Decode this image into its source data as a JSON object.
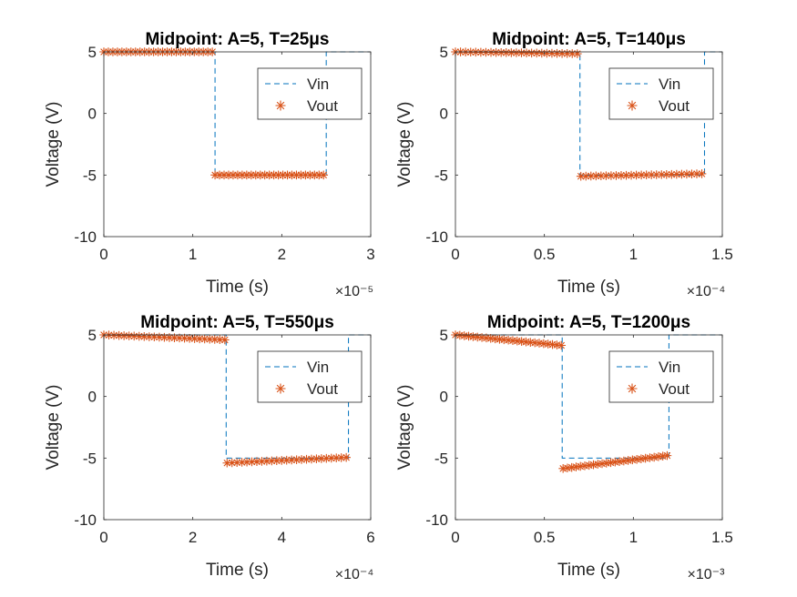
{
  "figure": {
    "colors": {
      "vin": "#0072BD",
      "vout": "#D95319",
      "axis": "#262626",
      "frame": "#262626"
    }
  },
  "chart_data": [
    {
      "type": "line",
      "title": "Midpoint: A=5, T=25μs",
      "xlabel": "Time (s)",
      "ylabel": "Voltage (V)",
      "xlim": [
        0,
        3e-05
      ],
      "ylim": [
        -10,
        5
      ],
      "x_exponent_label": "×10⁻⁵",
      "x_ticks": [
        0,
        1e-05,
        2e-05,
        3e-05
      ],
      "x_tick_labels": [
        "0",
        "1",
        "2",
        "3"
      ],
      "y_ticks": [
        -10,
        -5,
        0,
        5
      ],
      "y_tick_labels": [
        "-10",
        "-5",
        "0",
        "5"
      ],
      "grid": false,
      "legend": {
        "position": "top-right",
        "entries": [
          "Vin",
          "Vout"
        ]
      },
      "period": 2.5e-05,
      "series": [
        {
          "name": "Vin",
          "style": "dashed",
          "x": [
            0,
            1.25e-05,
            1.25e-05,
            2.5e-05,
            2.5e-05,
            3e-05
          ],
          "y": [
            5,
            5,
            -5,
            -5,
            5,
            5
          ]
        },
        {
          "name": "Vout",
          "style": "star",
          "segments": [
            {
              "x0": 0,
              "x1": 1.22e-05,
              "y0": 5,
              "y1": 5
            },
            {
              "x0": 1.25e-05,
              "x1": 2.47e-05,
              "y0": -5,
              "y1": -5
            }
          ]
        }
      ]
    },
    {
      "type": "line",
      "title": "Midpoint: A=5, T=140μs",
      "xlabel": "Time (s)",
      "ylabel": "Voltage (V)",
      "xlim": [
        0,
        0.00015
      ],
      "ylim": [
        -10,
        5
      ],
      "x_exponent_label": "×10⁻⁴",
      "x_ticks": [
        0,
        5e-05,
        0.0001,
        0.00015
      ],
      "x_tick_labels": [
        "0",
        "0.5",
        "1",
        "1.5"
      ],
      "y_ticks": [
        -10,
        -5,
        0,
        5
      ],
      "y_tick_labels": [
        "-10",
        "-5",
        "0",
        "5"
      ],
      "grid": false,
      "legend": {
        "position": "top-right",
        "entries": [
          "Vin",
          "Vout"
        ]
      },
      "period": 0.00014,
      "series": [
        {
          "name": "Vin",
          "style": "dashed",
          "x": [
            0,
            7e-05,
            7e-05,
            0.00014,
            0.00014,
            0.00015
          ],
          "y": [
            5,
            5,
            -5,
            -5,
            5,
            5
          ]
        },
        {
          "name": "Vout",
          "style": "star",
          "segments": [
            {
              "x0": 0,
              "x1": 6.85e-05,
              "y0": 5.0,
              "y1": 4.85
            },
            {
              "x0": 7.05e-05,
              "x1": 0.0001385,
              "y0": -5.1,
              "y1": -4.9
            }
          ]
        }
      ]
    },
    {
      "type": "line",
      "title": "Midpoint: A=5, T=550μs",
      "xlabel": "Time (s)",
      "ylabel": "Voltage (V)",
      "xlim": [
        0,
        0.0006
      ],
      "ylim": [
        -10,
        5
      ],
      "x_exponent_label": "×10⁻⁴",
      "x_ticks": [
        0,
        0.0002,
        0.0004,
        0.0006
      ],
      "x_tick_labels": [
        "0",
        "2",
        "4",
        "6"
      ],
      "y_ticks": [
        -10,
        -5,
        0,
        5
      ],
      "y_tick_labels": [
        "-10",
        "-5",
        "0",
        "5"
      ],
      "grid": false,
      "legend": {
        "position": "top-right",
        "entries": [
          "Vin",
          "Vout"
        ]
      },
      "period": 0.00055,
      "series": [
        {
          "name": "Vin",
          "style": "dashed",
          "x": [
            0,
            0.000275,
            0.000275,
            0.00055,
            0.00055,
            0.0006
          ],
          "y": [
            5,
            5,
            -5,
            -5,
            5,
            5
          ]
        },
        {
          "name": "Vout",
          "style": "star",
          "segments": [
            {
              "x0": 0,
              "x1": 0.000272,
              "y0": 5.0,
              "y1": 4.6
            },
            {
              "x0": 0.000277,
              "x1": 0.000545,
              "y0": -5.4,
              "y1": -4.95
            }
          ]
        }
      ]
    },
    {
      "type": "line",
      "title": "Midpoint: A=5, T=1200μs",
      "xlabel": "Time (s)",
      "ylabel": "Voltage (V)",
      "xlim": [
        0,
        0.0015
      ],
      "ylim": [
        -10,
        5
      ],
      "x_exponent_label": "×10⁻³",
      "x_ticks": [
        0,
        0.0005,
        0.001,
        0.0015
      ],
      "x_tick_labels": [
        "0",
        "0.5",
        "1",
        "1.5"
      ],
      "y_ticks": [
        -10,
        -5,
        0,
        5
      ],
      "y_tick_labels": [
        "-10",
        "-5",
        "0",
        "5"
      ],
      "grid": false,
      "legend": {
        "position": "top-right",
        "entries": [
          "Vin",
          "Vout"
        ]
      },
      "period": 0.0012,
      "series": [
        {
          "name": "Vin",
          "style": "dashed",
          "x": [
            0,
            0.0006,
            0.0006,
            0.0012,
            0.0012,
            0.0015
          ],
          "y": [
            5,
            5,
            -5,
            -5,
            5,
            5
          ]
        },
        {
          "name": "Vout",
          "style": "star",
          "segments": [
            {
              "x0": 0,
              "x1": 0.000595,
              "y0": 5.0,
              "y1": 4.15
            },
            {
              "x0": 0.000605,
              "x1": 0.00119,
              "y0": -5.85,
              "y1": -4.8
            }
          ]
        }
      ]
    }
  ]
}
